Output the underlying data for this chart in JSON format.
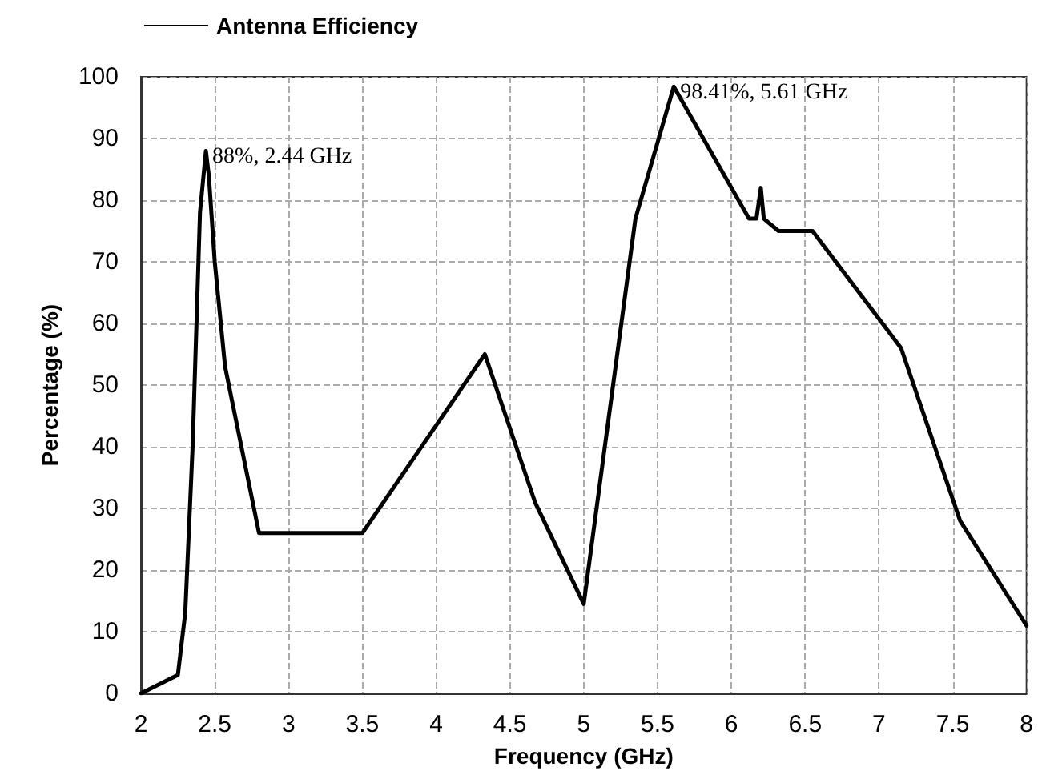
{
  "chart_data": {
    "type": "line",
    "xlabel": "Frequency (GHz)",
    "ylabel": "Percentage (%)",
    "xlim": [
      2,
      8
    ],
    "xticks": [
      2,
      2.5,
      3,
      3.5,
      4,
      4.5,
      5,
      5.5,
      6,
      6.5,
      7,
      7.5,
      8
    ],
    "ylim": [
      0,
      100
    ],
    "yticks": [
      0,
      10,
      20,
      30,
      40,
      50,
      60,
      70,
      80,
      90,
      100
    ],
    "grid": true,
    "legend": "top left",
    "marker": "none",
    "line_style": "solid",
    "series": [
      {
        "name": "Antenna Efficiency",
        "color": "#000000",
        "x": [
          2,
          2.25,
          2.3,
          2.35,
          2.4,
          2.44,
          2.46,
          2.5,
          2.57,
          2.8,
          3.5,
          4.33,
          4.67,
          5,
          5.35,
          5.61,
          6.12,
          6.17,
          6.2,
          6.22,
          6.32,
          6.55,
          7.15,
          7.55,
          8
        ],
        "values": [
          0,
          3,
          13,
          40,
          78,
          88,
          84,
          70,
          53,
          26,
          26,
          55,
          31,
          14.5,
          77,
          98.41,
          77,
          77,
          82,
          77,
          75,
          75,
          56,
          28,
          11
        ]
      }
    ],
    "annotations": [
      {
        "text": "88%, 2.44 GHz",
        "x": 2.44,
        "y": 88
      },
      {
        "text": "98.41%, 5.61 GHz",
        "x": 5.61,
        "y": 98.41
      }
    ]
  }
}
